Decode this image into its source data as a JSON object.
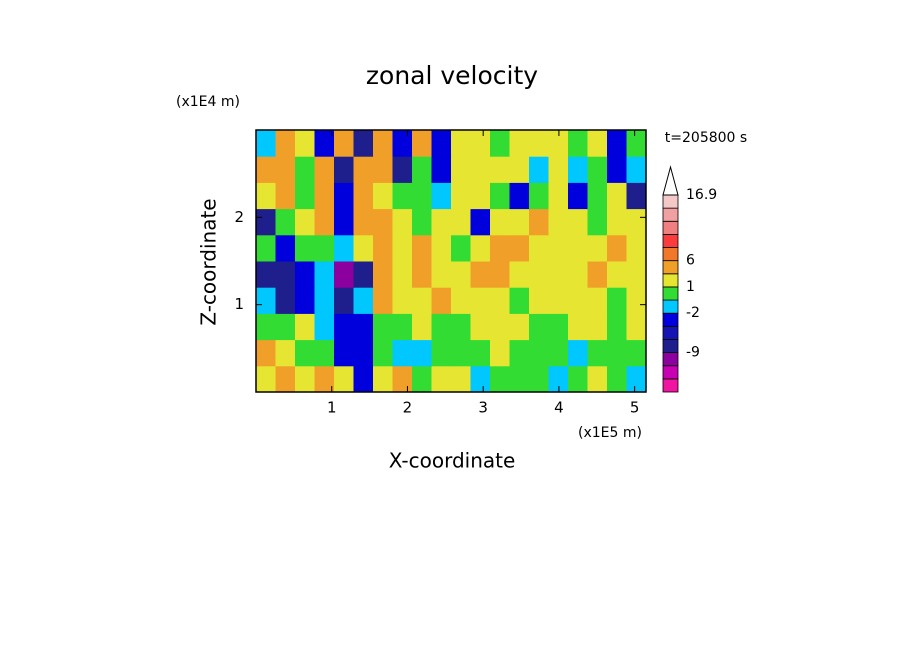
{
  "chart_data": {
    "type": "heatmap",
    "title": "zonal velocity",
    "x_label": "X-coordinate",
    "y_label": "Z-coordinate",
    "x_unit": "(x1E5 m)",
    "y_unit": "(x1E4 m)",
    "time_label": "t=205800 s",
    "xlim": [
      0,
      5.15
    ],
    "ylim": [
      0,
      3
    ],
    "xticks": [
      1,
      2,
      3,
      4,
      5
    ],
    "yticks": [
      1,
      2
    ],
    "values": [
      [
        2,
        5,
        2,
        5,
        2,
        -4,
        2,
        5,
        0,
        2,
        2,
        -1.5,
        0,
        0,
        0,
        -1.5,
        0,
        2,
        0,
        -1.5
      ],
      [
        5,
        2,
        0,
        0,
        -4,
        -4,
        0,
        -1.5,
        -1.5,
        0,
        0,
        0,
        2,
        0,
        0,
        0,
        -1.5,
        0,
        0,
        0
      ],
      [
        0,
        0,
        2,
        -1.5,
        -4,
        -4,
        0,
        0,
        2,
        0,
        0,
        2,
        2,
        2,
        0,
        0,
        2,
        2,
        0,
        2
      ],
      [
        -1.5,
        -7,
        -4,
        -1.5,
        -7,
        -1.5,
        5,
        2,
        2,
        5,
        2,
        2,
        2,
        0,
        2,
        2,
        2,
        2,
        0,
        2
      ],
      [
        -7,
        -7,
        -4,
        -1.5,
        -10,
        -7,
        5,
        2,
        5,
        2,
        2,
        5,
        5,
        2,
        2,
        2,
        2,
        5,
        2,
        2
      ],
      [
        0,
        -4,
        0,
        0,
        -1.5,
        2,
        5,
        2,
        5,
        2,
        0,
        2,
        5,
        5,
        2,
        2,
        2,
        2,
        5,
        2
      ],
      [
        -7,
        0,
        2,
        5,
        -4,
        5,
        5,
        2,
        0,
        2,
        2,
        -4,
        2,
        2,
        5,
        2,
        2,
        0,
        2,
        2
      ],
      [
        2,
        5,
        0,
        5,
        -4,
        5,
        2,
        0,
        0,
        -1.5,
        2,
        2,
        0,
        -4,
        0,
        2,
        -4,
        0,
        2,
        -7
      ],
      [
        5,
        3,
        0,
        5,
        -7,
        5,
        3,
        -7,
        0,
        -4,
        2,
        2,
        2,
        2,
        -1.5,
        2,
        -1.5,
        0,
        -4,
        -1.5
      ],
      [
        -1.5,
        5,
        2,
        -4,
        5,
        -7,
        3,
        -4,
        5,
        -4,
        2,
        2,
        0,
        2,
        2,
        2,
        0,
        2,
        -4,
        0
      ]
    ],
    "colorbar": {
      "levels": [
        -12,
        -10,
        -9,
        -6,
        -4,
        -2,
        -1,
        1,
        3,
        6,
        9,
        11,
        13,
        15,
        16.9
      ],
      "colors": [
        "#f014a0",
        "#c800b4",
        "#8c00a0",
        "#1e1e8c",
        "#1414b4",
        "#0000dc",
        "#00c8ff",
        "#32dc32",
        "#e6e632",
        "#f0a028",
        "#f07828",
        "#fa3c3c",
        "#f08080",
        "#f0a0a0",
        "#f5c8c8",
        "#ffffff"
      ],
      "ticks": [
        -9,
        -2,
        1,
        6,
        16.9
      ]
    }
  }
}
